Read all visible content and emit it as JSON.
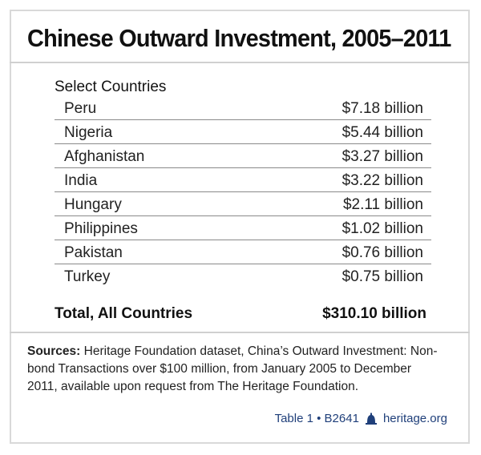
{
  "title": "Chinese Outward Investment, 2005–2011",
  "section_label": "Select Countries",
  "chart_data": {
    "type": "table",
    "title": "Chinese Outward Investment, 2005–2011",
    "columns": [
      "Select Countries",
      ""
    ],
    "rows": [
      {
        "country": "Peru",
        "value": 7.18,
        "label": "$7.18 billion"
      },
      {
        "country": "Nigeria",
        "value": 5.44,
        "label": "$5.44 billion"
      },
      {
        "country": "Afghanistan",
        "value": 3.27,
        "label": "$3.27 billion"
      },
      {
        "country": "India",
        "value": 3.22,
        "label": "$3.22 billion"
      },
      {
        "country": "Hungary",
        "value": 2.11,
        "label": "$2.11 billion"
      },
      {
        "country": "Philippines",
        "value": 1.02,
        "label": "$1.02 billion"
      },
      {
        "country": "Pakistan",
        "value": 0.76,
        "label": "$0.76 billion"
      },
      {
        "country": "Turkey",
        "value": 0.75,
        "label": "$0.75 billion"
      }
    ],
    "total": {
      "label": "Total, All Countries",
      "value": 310.1,
      "display": "$310.10 billion"
    }
  },
  "sources": {
    "prefix": "Sources:",
    "text": " Heritage Foundation dataset, China’s Outward Investment: Non-bond Transactions over $100 million, from January 2005 to December 2011, available upon request from The Heritage Foundation."
  },
  "credit": {
    "table_id": "Table 1 • B2641",
    "site": "heritage.org",
    "color": "#1f3f7a"
  }
}
